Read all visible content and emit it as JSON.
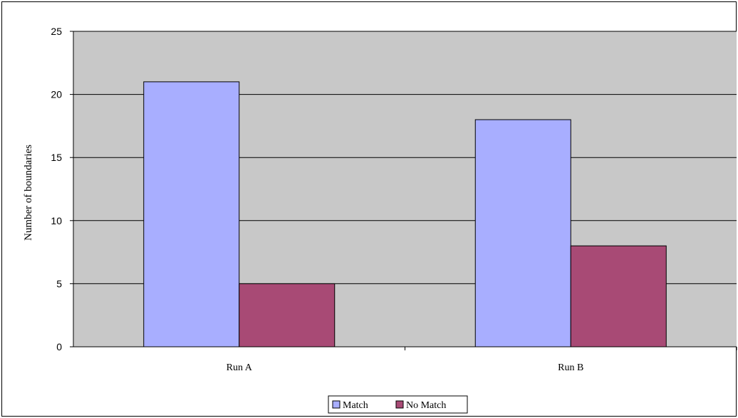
{
  "chart_data": {
    "type": "bar",
    "title": "",
    "xlabel": "",
    "ylabel": "Number of boundaries",
    "categories": [
      "Run A",
      "Run B"
    ],
    "series": [
      {
        "name": "Match",
        "values": [
          21,
          18
        ],
        "color": "#a8aeff"
      },
      {
        "name": "No Match",
        "values": [
          5,
          8
        ],
        "color": "#a84a75"
      }
    ],
    "ylim": [
      0,
      25
    ],
    "yticks": [
      0,
      5,
      10,
      15,
      20,
      25
    ],
    "grid": true,
    "plot_background": "#c8c8c8",
    "legend_position": "bottom-center"
  }
}
